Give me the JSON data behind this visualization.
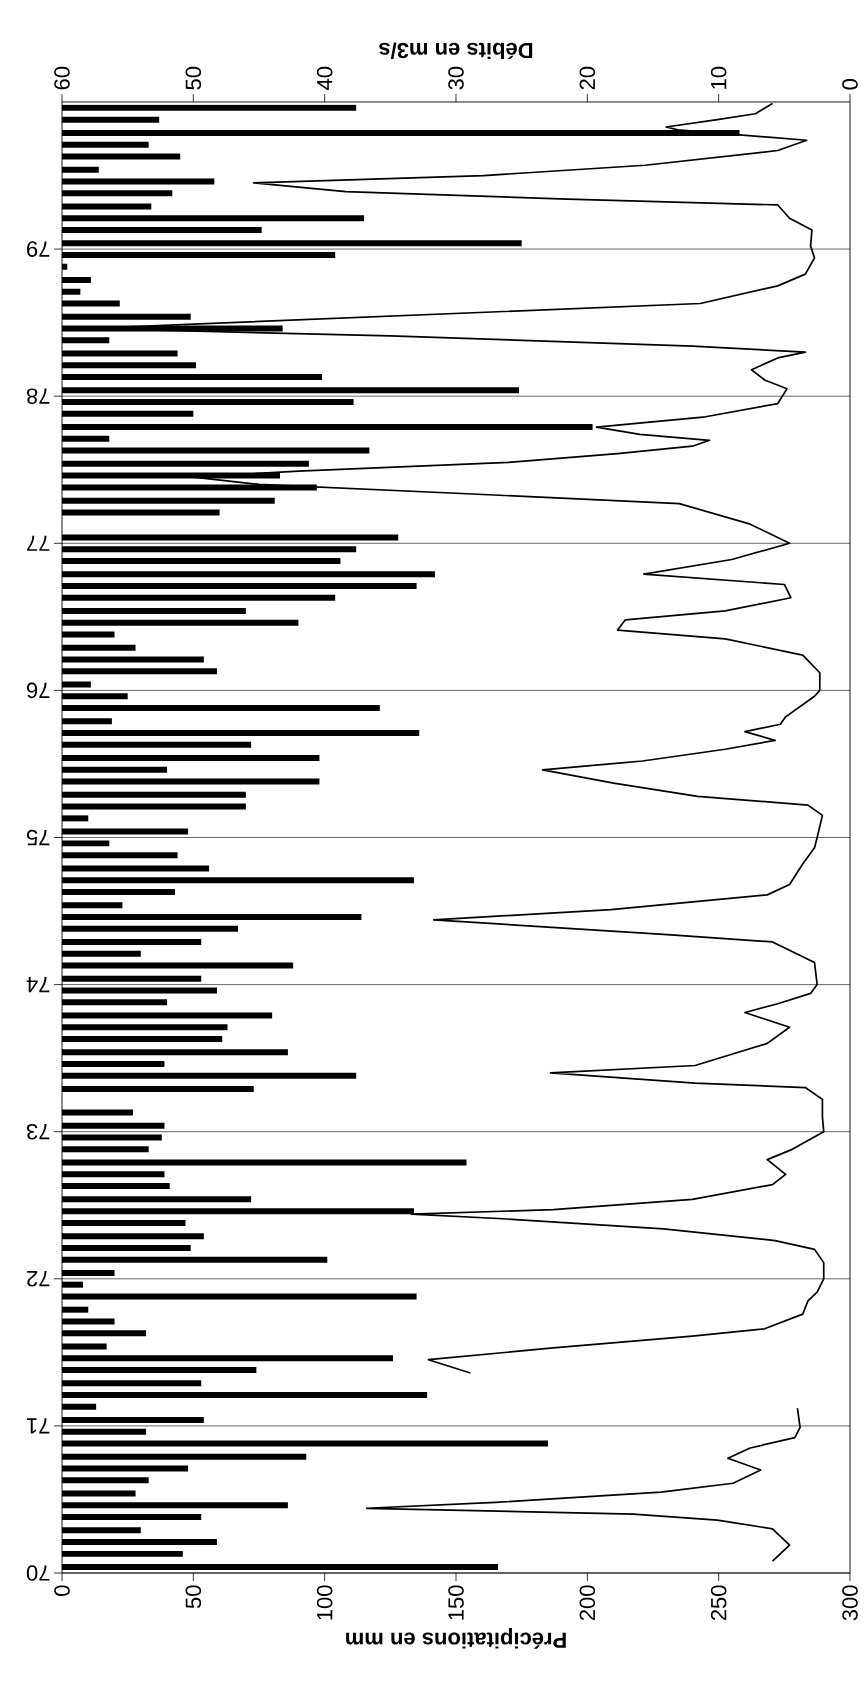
{
  "chart_data": {
    "type": "bar",
    "orientation": "horizontal",
    "xlabel": "Précipitations en mm",
    "x2label": "Débits en m3/s",
    "xlim": [
      0,
      300
    ],
    "xticks": [
      0,
      50,
      100,
      150,
      200,
      250,
      300
    ],
    "x2lim": [
      60,
      0
    ],
    "x2ticks": [
      60,
      50,
      40,
      30,
      20,
      10,
      0
    ],
    "ylim": [
      1970,
      1980
    ],
    "yticks": [
      {
        "value": 1970,
        "label": "70"
      },
      {
        "value": 1971,
        "label": "71"
      },
      {
        "value": 1972,
        "label": "72"
      },
      {
        "value": 1973,
        "label": "73"
      },
      {
        "value": 1974,
        "label": "74"
      },
      {
        "value": 1975,
        "label": "75"
      },
      {
        "value": 1976,
        "label": "76"
      },
      {
        "value": 1977,
        "label": "77"
      },
      {
        "value": 1978,
        "label": "78"
      },
      {
        "value": 1979,
        "label": "79"
      }
    ],
    "grid": "y",
    "series": [
      {
        "color": "#000000",
        "x": [
          1970.04,
          1970.13,
          1970.21,
          1970.29,
          1970.38,
          1970.46,
          1970.54,
          1970.63,
          1970.71,
          1970.79,
          1970.88,
          1970.96,
          1971.04,
          1971.13,
          1971.21,
          1971.29,
          1971.38,
          1971.46,
          1971.54,
          1971.63,
          1971.71,
          1971.79,
          1971.88,
          1971.96,
          1972.04,
          1972.13,
          1972.21,
          1972.29,
          1972.38,
          1972.46,
          1972.54,
          1972.63,
          1972.71,
          1972.79,
          1972.88,
          1972.96,
          1973.04,
          1973.13,
          1973.21,
          1973.29,
          1973.38,
          1973.46,
          1973.54,
          1973.63,
          1973.71,
          1973.79,
          1973.88,
          1973.96,
          1974.04,
          1974.13,
          1974.21,
          1974.29,
          1974.38,
          1974.46,
          1974.54,
          1974.63,
          1974.71,
          1974.79,
          1974.88,
          1974.96,
          1975.04,
          1975.13,
          1975.21,
          1975.29,
          1975.38,
          1975.46,
          1975.54,
          1975.63,
          1975.71,
          1975.79,
          1975.88,
          1975.96,
          1976.04,
          1976.13,
          1976.21,
          1976.29,
          1976.38,
          1976.46,
          1976.54,
          1976.63,
          1976.71,
          1976.79,
          1976.88,
          1976.96,
          1977.04,
          1977.13,
          1977.21,
          1977.29,
          1977.38,
          1977.46,
          1977.54,
          1977.63,
          1977.71,
          1977.79,
          1977.88,
          1977.96,
          1978.04,
          1978.13,
          1978.21,
          1978.29,
          1978.38,
          1978.46,
          1978.54,
          1978.63,
          1978.71,
          1978.79,
          1978.88,
          1978.96,
          1979.04,
          1979.13,
          1979.21,
          1979.29,
          1979.38,
          1979.46,
          1979.54,
          1979.63,
          1979.71,
          1979.79,
          1979.88,
          1979.96
        ],
        "values": [
          166,
          46,
          59,
          30,
          53,
          86,
          28,
          33,
          48,
          93,
          185,
          32,
          54,
          13,
          139,
          53,
          74,
          126,
          17,
          32,
          20,
          10,
          135,
          8,
          20,
          101,
          49,
          54,
          47,
          134,
          72,
          41,
          39,
          154,
          33,
          38,
          39,
          27,
          null,
          73,
          112,
          39,
          86,
          61,
          63,
          80,
          40,
          59,
          53,
          88,
          30,
          53,
          67,
          114,
          23,
          43,
          134,
          56,
          44,
          18,
          48,
          10,
          70,
          70,
          98,
          40,
          98,
          72,
          136,
          19,
          121,
          25,
          11,
          59,
          54,
          28,
          20,
          90,
          70,
          104,
          135,
          142,
          106,
          112,
          128,
          null,
          60,
          81,
          97,
          83,
          94,
          117,
          18,
          202,
          50,
          111,
          174,
          99,
          51,
          44,
          18,
          84,
          49,
          22,
          7,
          11,
          2,
          104,
          175,
          76,
          115,
          34,
          42,
          58,
          14,
          45,
          33,
          258,
          37,
          112
        ]
      },
      {
        "type": "line",
        "axis": "x2",
        "color": "#000000",
        "x": [
          1970.08,
          1970.19,
          1970.3,
          1970.36,
          1970.4,
          1970.44,
          1970.48,
          1970.55,
          1970.61,
          1970.7,
          1970.78,
          1970.85,
          1970.92,
          1970.99,
          1971.12,
          1971.24,
          1971.36,
          1971.45,
          1971.53,
          1971.61,
          1971.66,
          1971.76,
          1971.85,
          1971.91,
          1972.0,
          1972.11,
          1972.2,
          1972.26,
          1972.34,
          1972.41,
          1972.44,
          1972.47,
          1972.54,
          1972.64,
          1972.71,
          1972.81,
          1972.88,
          1973.0,
          1973.1,
          1973.22,
          1973.3,
          1973.33,
          1973.4,
          1973.45,
          1973.6,
          1973.71,
          1973.81,
          1973.87,
          1973.94,
          1974.0,
          1974.15,
          1974.29,
          1974.34,
          1974.44,
          1974.51,
          1974.61,
          1974.68,
          1974.82,
          1974.93,
          1975.0,
          1975.15,
          1975.22,
          1975.28,
          1975.37,
          1975.46,
          1975.52,
          1975.6,
          1975.66,
          1975.72,
          1975.77,
          1975.82,
          1975.96,
          1976.0,
          1976.12,
          1976.24,
          1976.35,
          1976.41,
          1976.48,
          1976.54,
          1976.63,
          1976.72,
          1976.79,
          1976.89,
          1977.0,
          1977.13,
          1977.27,
          1977.34,
          1977.4,
          1977.45,
          1977.49,
          1977.55,
          1977.61,
          1977.66,
          1977.7,
          1977.74,
          1977.79,
          1977.86,
          1977.95,
          1978.05,
          1978.11,
          1978.18,
          1978.26,
          1978.3,
          1978.34,
          1978.41,
          1978.46,
          1978.49,
          1978.63,
          1978.75,
          1978.83,
          1978.94,
          1979.02,
          1979.13,
          1979.21,
          1979.3,
          1979.34,
          1979.39,
          1979.45,
          1979.5,
          1979.57,
          1979.67,
          1979.74,
          1979.81,
          1979.83,
          1979.88,
          1979.92,
          1979.99
        ],
        "values": [
          5.9,
          4.6,
          5.9,
          10.1,
          16.5,
          36.8,
          27,
          14.4,
          8.9,
          6.8,
          9.3,
          7.6,
          4.2,
          3.8,
          4.0,
          null,
          28.9,
          32.1,
          22.6,
          12,
          6.5,
          3.6,
          3.2,
          2.5,
          2.0,
          2.0,
          2.7,
          5.7,
          14.2,
          26.8,
          33.4,
          22.6,
          12,
          5.9,
          4.9,
          6.3,
          4.4,
          2.0,
          2.1,
          2.1,
          3.4,
          11.8,
          22.8,
          11.8,
          6.3,
          4.6,
          8.0,
          5.5,
          3.0,
          2.5,
          2.7,
          5.9,
          13.9,
          31.7,
          18.2,
          6.3,
          4.6,
          3.6,
          2.7,
          2.5,
          2.1,
          3.2,
          11.6,
          18,
          23.4,
          15.8,
          9.5,
          5.7,
          8.0,
          5.3,
          4.9,
          2.7,
          2.3,
          2.3,
          3.6,
          9.5,
          17.7,
          17.1,
          9.5,
          4.5,
          5,
          15.7,
          9.0,
          4.6,
          7.6,
          13,
          30,
          45,
          50,
          42,
          26,
          17.7,
          12,
          10.7,
          16,
          19.3,
          11,
          5.5,
          4.8,
          6.5,
          7.5,
          5.5,
          3.4,
          12,
          35,
          58,
          50,
          11.4,
          5.5,
          3.4,
          2.7,
          3.0,
          2.9,
          4.6,
          5.5,
          21.5,
          38.4,
          45.4,
          27.9,
          15.6,
          5.5,
          3.3,
          13.1,
          14.0,
          10.1,
          7.2,
          5.9
        ]
      }
    ]
  }
}
